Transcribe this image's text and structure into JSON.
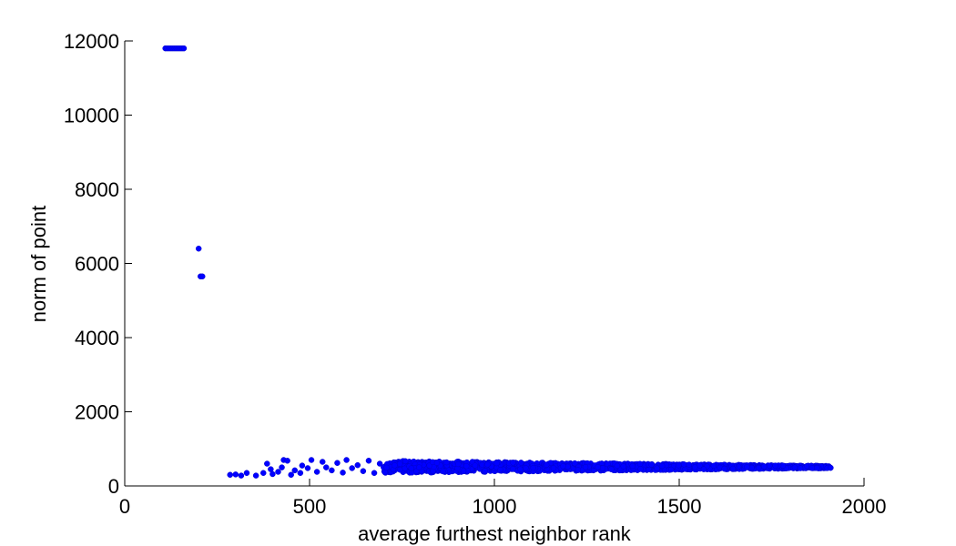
{
  "chart_data": {
    "type": "scatter",
    "xlabel": "average furthest neighbor rank",
    "ylabel": "norm of point",
    "xlim": [
      0,
      2000
    ],
    "ylim": [
      0,
      12000
    ],
    "xticks": [
      "0",
      "500",
      "1000",
      "1500",
      "2000"
    ],
    "yticks": [
      "0",
      "2000",
      "4000",
      "6000",
      "8000",
      "10000",
      "12000"
    ],
    "grid": false,
    "series": [
      {
        "color": "#0000ff",
        "outliers": [
          {
            "x": 110,
            "y": 11800
          },
          {
            "x": 115,
            "y": 11800
          },
          {
            "x": 120,
            "y": 11800
          },
          {
            "x": 125,
            "y": 11800
          },
          {
            "x": 130,
            "y": 11800
          },
          {
            "x": 135,
            "y": 11800
          },
          {
            "x": 140,
            "y": 11800
          },
          {
            "x": 145,
            "y": 11800
          },
          {
            "x": 150,
            "y": 11800
          },
          {
            "x": 155,
            "y": 11800
          },
          {
            "x": 160,
            "y": 11800
          },
          {
            "x": 200,
            "y": 6400
          },
          {
            "x": 205,
            "y": 5650
          },
          {
            "x": 210,
            "y": 5650
          }
        ],
        "sparse_points": [
          {
            "x": 285,
            "y": 300
          },
          {
            "x": 300,
            "y": 310
          },
          {
            "x": 315,
            "y": 280
          },
          {
            "x": 330,
            "y": 350
          },
          {
            "x": 355,
            "y": 280
          },
          {
            "x": 375,
            "y": 350
          },
          {
            "x": 385,
            "y": 600
          },
          {
            "x": 395,
            "y": 450
          },
          {
            "x": 400,
            "y": 320
          },
          {
            "x": 415,
            "y": 380
          },
          {
            "x": 425,
            "y": 500
          },
          {
            "x": 430,
            "y": 700
          },
          {
            "x": 440,
            "y": 680
          },
          {
            "x": 450,
            "y": 300
          },
          {
            "x": 460,
            "y": 420
          },
          {
            "x": 475,
            "y": 350
          },
          {
            "x": 480,
            "y": 550
          },
          {
            "x": 495,
            "y": 480
          },
          {
            "x": 505,
            "y": 700
          },
          {
            "x": 520,
            "y": 380
          },
          {
            "x": 535,
            "y": 650
          },
          {
            "x": 545,
            "y": 500
          },
          {
            "x": 560,
            "y": 420
          },
          {
            "x": 575,
            "y": 620
          },
          {
            "x": 590,
            "y": 360
          },
          {
            "x": 600,
            "y": 700
          },
          {
            "x": 615,
            "y": 480
          },
          {
            "x": 630,
            "y": 560
          },
          {
            "x": 645,
            "y": 400
          },
          {
            "x": 660,
            "y": 680
          },
          {
            "x": 675,
            "y": 350
          },
          {
            "x": 690,
            "y": 600
          }
        ],
        "dense_band": {
          "x_start": 700,
          "x_end": 1910,
          "y_bottom_at_start": 350,
          "y_bottom_at_end": 480,
          "y_top_at_start": 680,
          "y_top_at_end": 540
        }
      }
    ]
  }
}
